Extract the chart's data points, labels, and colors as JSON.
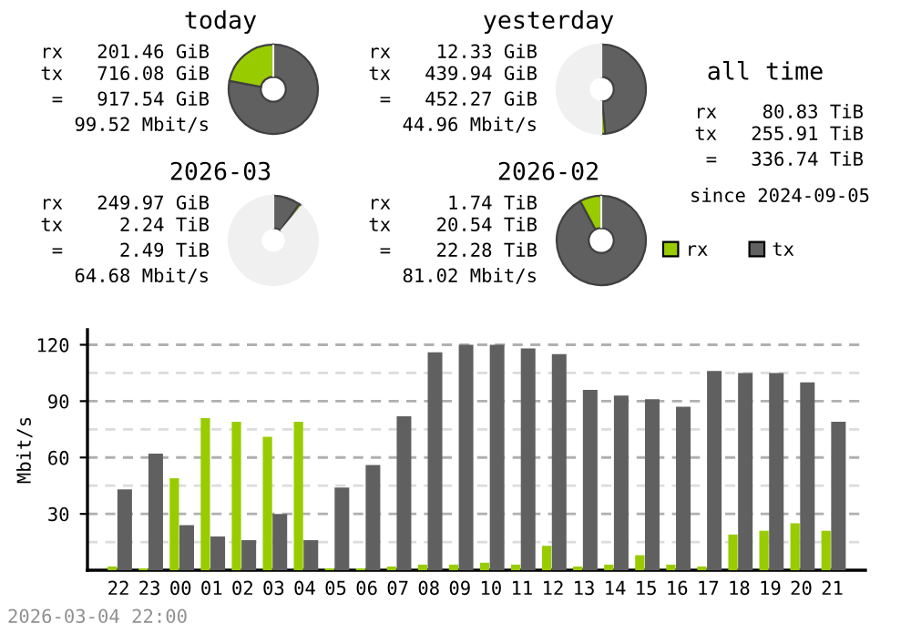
{
  "chart_data": [
    {
      "type": "donut",
      "title": "today",
      "categories": [
        null,
        null,
        null
      ],
      "values": [
        78.0,
        22.0,
        0
      ],
      "colors": [
        "#606060",
        "#99cc00",
        "#f0f0f0"
      ],
      "annotations": [
        "rx   201.46 GiB",
        "tx   716.08 GiB",
        "=   917.54 GiB",
        "99.52 Mbit/s"
      ]
    },
    {
      "type": "donut",
      "title": "yesterday",
      "categories": [
        null,
        null,
        null
      ],
      "values": [
        48.6,
        1.4,
        50.0
      ],
      "colors": [
        "#606060",
        "#99cc00",
        "#f0f0f0"
      ],
      "annotations": [
        "rx    12.33 GiB",
        "tx   439.94 GiB",
        "=   452.27 GiB",
        "44.96 Mbit/s"
      ]
    },
    {
      "type": "donut",
      "title": "2026-03",
      "categories": [
        null,
        null,
        null
      ],
      "values": [
        9.9,
        1.1,
        89.0
      ],
      "colors": [
        "#606060",
        "#99cc00",
        "#f0f0f0"
      ],
      "annotations": [
        "rx   249.97 GiB",
        "tx     2.24 TiB",
        "=     2.49 TiB",
        "64.68 Mbit/s"
      ]
    },
    {
      "type": "donut",
      "title": "2026-02",
      "categories": [
        null,
        null,
        null
      ],
      "values": [
        92.2,
        7.8,
        0
      ],
      "colors": [
        "#606060",
        "#99cc00",
        "#f0f0f0"
      ],
      "annotations": [
        "rx     1.74 TiB",
        "tx    20.54 TiB",
        "=    22.28 TiB",
        "81.02 Mbit/s"
      ]
    },
    {
      "type": "other",
      "title": "all time",
      "annotations": [
        "rx    80.83 TiB",
        "tx   255.91 TiB",
        "=   336.74 TiB",
        "since 2024-09-05"
      ]
    },
    {
      "type": "bar",
      "ylabel": "Mbit/s",
      "categories": [
        "22",
        "23",
        "00",
        "01",
        "02",
        "03",
        "04",
        "05",
        "06",
        "07",
        "08",
        "09",
        "10",
        "11",
        "12",
        "13",
        "14",
        "15",
        "16",
        "17",
        "18",
        "19",
        "20",
        "21"
      ],
      "series": [
        {
          "name": "rx",
          "color": "#99cc00",
          "values": [
            2,
            1,
            49,
            81,
            79,
            71,
            79,
            1,
            1,
            2,
            3,
            3,
            4,
            3,
            13,
            2,
            3,
            8,
            3,
            2,
            19,
            21,
            25,
            21
          ]
        },
        {
          "name": "tx",
          "color": "#606060",
          "values": [
            43,
            62,
            24,
            18,
            16,
            30,
            16,
            44,
            56,
            82,
            116,
            120,
            120,
            118,
            115,
            96,
            93,
            91,
            87,
            106,
            105,
            105,
            100,
            79
          ]
        }
      ],
      "ylim": [
        0,
        128
      ],
      "yticks": [
        {
          "value": 15,
          "label": null
        },
        30,
        {
          "value": 45,
          "label": null
        },
        60,
        {
          "value": 75,
          "label": null
        },
        90,
        {
          "value": 105,
          "label": null
        },
        120
      ],
      "grid": "y",
      "legend": "top right",
      "annotations": [
        "2026-03-04 22:00"
      ]
    }
  ]
}
